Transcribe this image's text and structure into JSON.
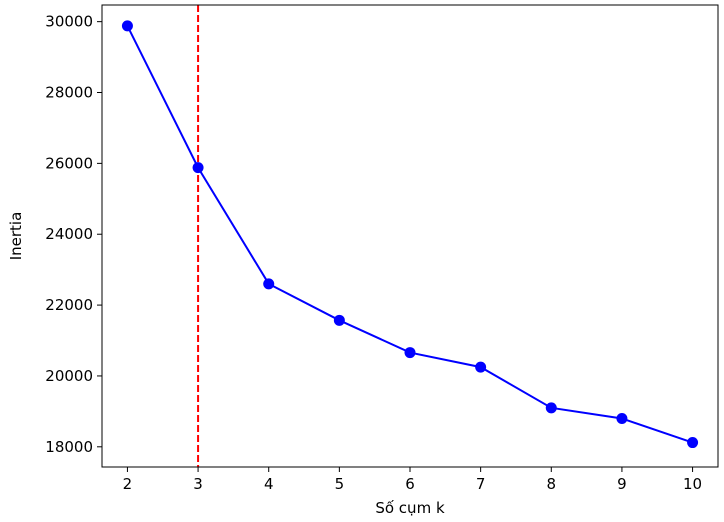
{
  "chart_data": {
    "type": "line",
    "title": "",
    "xlabel": "Số cụm k",
    "ylabel": "Inertia",
    "x": [
      2,
      3,
      4,
      5,
      6,
      7,
      8,
      9,
      10
    ],
    "series": [
      {
        "values": [
          29880,
          25880,
          22600,
          21570,
          20660,
          20250,
          19100,
          18800,
          18120
        ],
        "color": "#0000ff",
        "marker": "circle"
      }
    ],
    "reference_line": {
      "axis": "x",
      "value": 3,
      "color": "#ff0000",
      "style": "dashed"
    },
    "xlim": [
      1.64,
      10.36
    ],
    "ylim": [
      17430,
      30470
    ],
    "xticks": [
      2,
      3,
      4,
      5,
      6,
      7,
      8,
      9,
      10
    ],
    "yticks": [
      18000,
      20000,
      22000,
      24000,
      26000,
      28000,
      30000
    ],
    "grid": false,
    "legend": false
  }
}
